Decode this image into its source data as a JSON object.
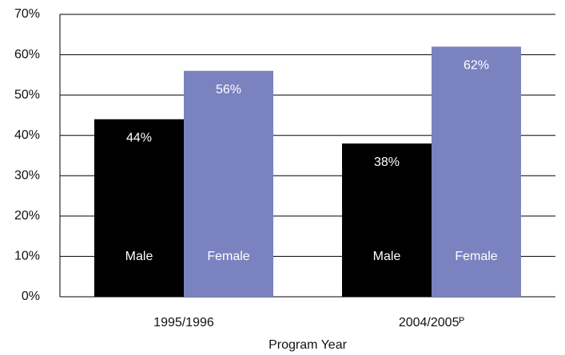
{
  "chart_data": {
    "type": "bar",
    "x_label": "Program Year",
    "categories": [
      "1995/1996",
      "2004/2005ᴾ"
    ],
    "series": [
      {
        "name": "Male",
        "color": "#000000",
        "values": [
          44,
          38
        ],
        "value_labels": [
          "44%",
          "38%"
        ]
      },
      {
        "name": "Female",
        "color": "#7a82c0",
        "values": [
          56,
          62
        ],
        "value_labels": [
          "56%",
          "62%"
        ]
      }
    ],
    "ylim": [
      0,
      70
    ],
    "yticks": [
      {
        "value": 0,
        "label": "0%"
      },
      {
        "value": 10,
        "label": "10%"
      },
      {
        "value": 20,
        "label": "20%"
      },
      {
        "value": 30,
        "label": "30%"
      },
      {
        "value": 40,
        "label": "40%"
      },
      {
        "value": 50,
        "label": "50%"
      },
      {
        "value": 60,
        "label": "60%"
      },
      {
        "value": 70,
        "label": "70%"
      }
    ],
    "grid": true
  }
}
